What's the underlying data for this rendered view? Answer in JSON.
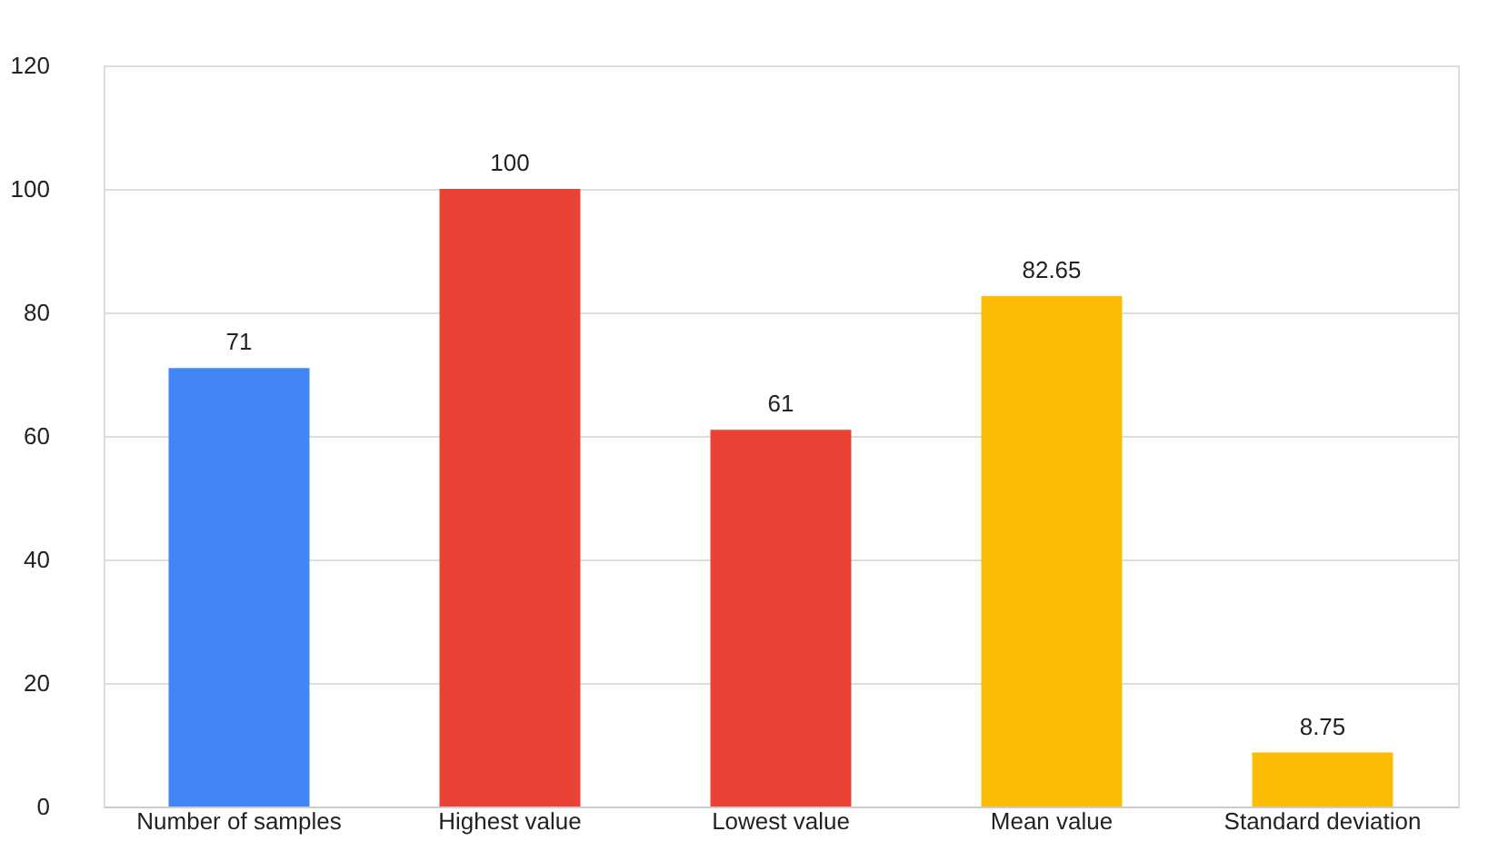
{
  "chart_data": {
    "type": "bar",
    "categories": [
      "Number of samples",
      "Highest value",
      "Lowest value",
      "Mean value",
      "Standard deviation"
    ],
    "values": [
      71,
      100,
      61,
      82.65,
      8.75
    ],
    "colors": [
      "#4285f4",
      "#ea4335",
      "#ea4335",
      "#fbbc04",
      "#fbbc04"
    ],
    "ylim": [
      0,
      120
    ],
    "yticks": [
      0,
      20,
      40,
      60,
      80,
      100,
      120
    ],
    "grid": "y",
    "data_labels": true
  }
}
